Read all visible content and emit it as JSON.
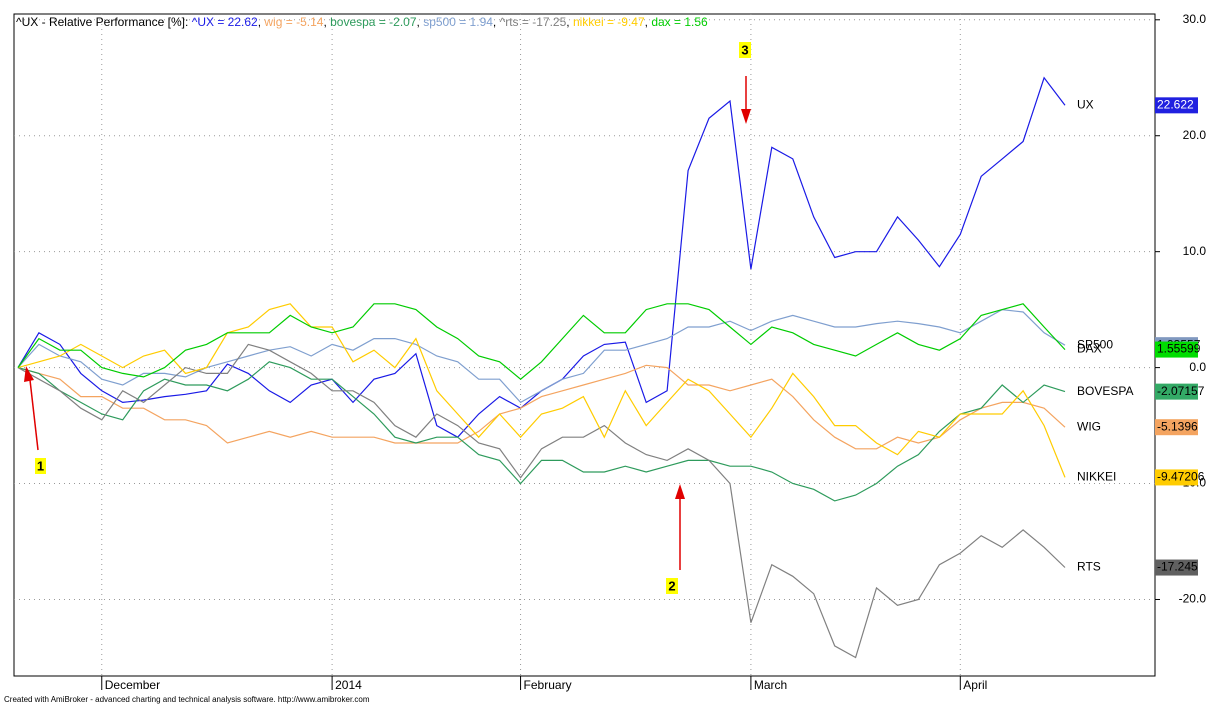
{
  "chart_data": {
    "type": "line",
    "title": "^UX - Relative Performance [%]:",
    "footer": "Created with AmiBroker - advanced charting and technical analysis software. http://www.amibroker.com",
    "categories": [
      null,
      null,
      null,
      null,
      "December",
      null,
      null,
      null,
      null,
      null,
      null,
      null,
      null,
      null,
      null,
      "2014",
      null,
      null,
      null,
      null,
      null,
      null,
      null,
      null,
      "February",
      null,
      null,
      null,
      null,
      null,
      null,
      null,
      null,
      null,
      null,
      "March",
      null,
      null,
      null,
      null,
      null,
      null,
      null,
      null,
      null,
      "April",
      null,
      null,
      null,
      null,
      null
    ],
    "ylim": [
      -26.6,
      30.5
    ],
    "yticks": [
      {
        "value": 30,
        "label": "30.0"
      },
      {
        "value": 20,
        "label": "20.0"
      },
      {
        "value": 10,
        "label": "10.0"
      },
      {
        "value": 0,
        "label": "0.0"
      },
      {
        "value": -10,
        "label": "-10.0"
      },
      {
        "value": -20,
        "label": "-20.0"
      }
    ],
    "grid": true,
    "series": [
      {
        "name": "UX",
        "legend_label": "^UX = 22.62",
        "last_label": "22.622",
        "color": "#1a1ae6",
        "box_color": "#2020e0",
        "box_text": "#ffffff",
        "values": [
          0,
          3,
          2,
          -0.5,
          -2,
          -3,
          -2.8,
          -2.5,
          -2.3,
          -2,
          0.3,
          -0.5,
          -2,
          -3,
          -1.5,
          -1,
          -3,
          -1,
          -0.5,
          1.2,
          -5,
          -6,
          -4,
          -2.5,
          -3.5,
          -2,
          -1,
          1,
          2,
          2.2,
          -3,
          -2,
          17,
          21.5,
          23,
          8.5,
          19,
          18,
          13,
          9.5,
          10,
          10,
          13,
          11,
          8.7,
          11.5,
          16.5,
          18,
          19.5,
          25,
          22.622
        ]
      },
      {
        "name": "WIG",
        "legend_label": "wig = -5.14",
        "last_label": "-5.1396",
        "color": "#f4a460",
        "box_color": "#f4a460",
        "box_text": "#000000",
        "values": [
          0,
          -0.5,
          -1,
          -2.5,
          -2.5,
          -3.5,
          -3.5,
          -4.5,
          -4.5,
          -5,
          -6.5,
          -6,
          -5.5,
          -6,
          -5.5,
          -6,
          -6,
          -6,
          -6.5,
          -6.5,
          -6.5,
          -6.5,
          -5.5,
          -4,
          -3.5,
          -2.5,
          -2,
          -1.5,
          -1,
          -0.5,
          0.2,
          0,
          -1.5,
          -1.5,
          -2,
          -1.5,
          -1,
          -2.5,
          -4.5,
          -6,
          -7,
          -7,
          -6,
          -6.5,
          -6,
          -4.5,
          -3.5,
          -3,
          -3,
          -3.5,
          -5.1396
        ]
      },
      {
        "name": "BOVESPA",
        "legend_label": "bovespa = -2.07",
        "last_label": "-2.07157",
        "color": "#2e9b5c",
        "box_color": "#33aa66",
        "box_text": "#000000",
        "values": [
          0,
          -0.5,
          -2,
          -3,
          -4,
          -4.5,
          -2,
          -1,
          -1.5,
          -1.5,
          -2,
          -1,
          0.5,
          0,
          -1,
          -1,
          -2.5,
          -4,
          -6,
          -6.5,
          -6,
          -6,
          -7.5,
          -8,
          -10,
          -8,
          -8,
          -9,
          -9,
          -8.5,
          -9,
          -8.5,
          -8,
          -8,
          -8.5,
          -8.5,
          -9,
          -10,
          -10.5,
          -11.5,
          -11,
          -10,
          -8.5,
          -7.5,
          -5.5,
          -4,
          -3.5,
          -1.5,
          -3,
          -1.5,
          -2.07157
        ]
      },
      {
        "name": "SP500",
        "legend_label": "sp500 = 1.94",
        "last_label": "1.93557",
        "color": "#7f9fcf",
        "box_color": "#8098bf",
        "box_text": "#000000",
        "values": [
          0,
          2,
          1,
          0.5,
          -1,
          -1.5,
          -0.5,
          -0.5,
          -0.8,
          0,
          0.5,
          1,
          1.5,
          1.8,
          1,
          2,
          1.5,
          2.5,
          2.5,
          2,
          1,
          0.5,
          -1,
          -1,
          -3,
          -2,
          -1,
          -0.5,
          1.5,
          1.5,
          2,
          2.5,
          3.5,
          3.5,
          4,
          3.2,
          4,
          4.5,
          4,
          3.5,
          3.5,
          3.8,
          4,
          3.8,
          3.5,
          3,
          4,
          5,
          4.8,
          3,
          1.93557
        ]
      },
      {
        "name": "RTS",
        "legend_label": "^rts = -17.25",
        "last_label": "-17.245",
        "color": "#808080",
        "box_color": "#606060",
        "box_text": "#000000",
        "values": [
          0,
          -1,
          -2,
          -3.5,
          -4.5,
          -2,
          -3,
          -1.5,
          0,
          -0.5,
          -0.5,
          2,
          1.5,
          0.5,
          -0.5,
          -2,
          -2,
          -3,
          -5,
          -6,
          -4,
          -5,
          -6.5,
          -7,
          -9.5,
          -7,
          -6,
          -6,
          -5,
          -6.5,
          -7.5,
          -8,
          -7,
          -8,
          -10,
          -22,
          -17,
          -18,
          -19.5,
          -24,
          -25,
          -19,
          -20.5,
          -20,
          -17,
          -16,
          -14.5,
          -15.5,
          -14,
          -15.5,
          -17.245
        ]
      },
      {
        "name": "NIKKEI",
        "legend_label": "nikkei = -9.47",
        "last_label": "-9.47206",
        "color": "#ffcc00",
        "box_color": "#ffcc00",
        "box_text": "#000000",
        "values": [
          0,
          0.5,
          1,
          2,
          1,
          0,
          1,
          1.5,
          -0.5,
          0,
          3,
          3.5,
          5,
          5.5,
          3.5,
          3.5,
          0.5,
          1.5,
          0,
          2.5,
          -2,
          -4,
          -6,
          -4,
          -6,
          -4,
          -3.5,
          -2.5,
          -6,
          -2,
          -5,
          -3,
          -1,
          -2,
          -4,
          -6,
          -3.5,
          -0.5,
          -2.5,
          -5,
          -5,
          -6.5,
          -7.5,
          -5.5,
          -6,
          -4,
          -4,
          -4,
          -2,
          -5,
          -9.47206
        ]
      },
      {
        "name": "DAX",
        "legend_label": "dax = 1.56",
        "last_label": "1.55599",
        "color": "#00cc00",
        "box_color": "#00dd00",
        "box_text": "#000000",
        "values": [
          0,
          2.5,
          1.5,
          1.5,
          0,
          -0.5,
          -0.8,
          0,
          1.5,
          2,
          3,
          3,
          3,
          4.5,
          3.5,
          3,
          3.5,
          5.5,
          5.5,
          5,
          3.5,
          2.5,
          1,
          0.5,
          -1,
          0.5,
          2.5,
          4.5,
          3,
          3,
          5,
          5.5,
          5.5,
          5,
          3.5,
          2,
          3.5,
          3,
          2,
          1.5,
          1,
          2,
          3,
          2,
          1.5,
          2.5,
          4.5,
          5,
          5.5,
          3.5,
          1.55599
        ]
      }
    ],
    "annotations": [
      "1",
      "2",
      "3"
    ]
  }
}
